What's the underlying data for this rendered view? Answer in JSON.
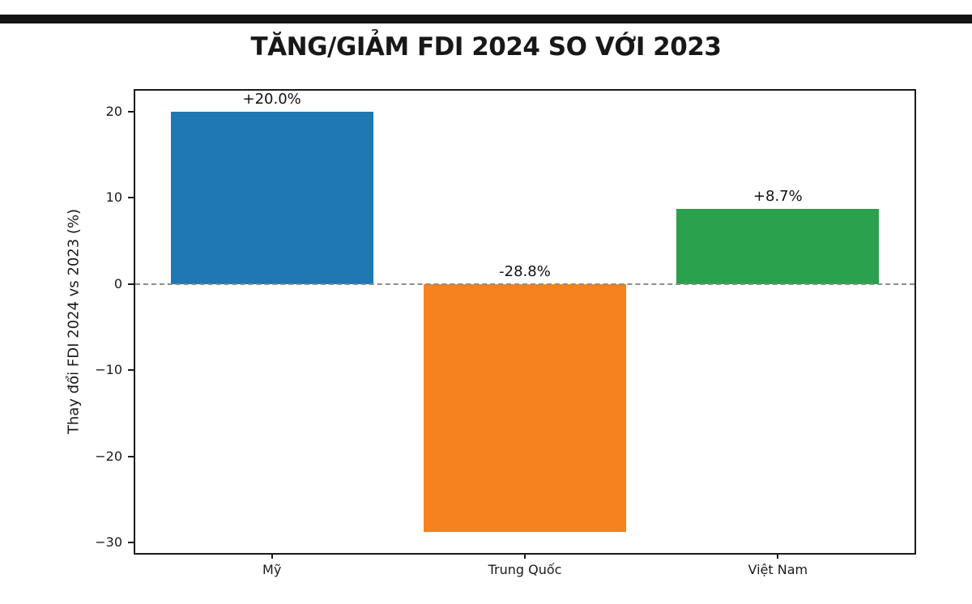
{
  "page": {
    "background": "#ffffff",
    "top_rule_color": "#141414"
  },
  "chart_data": {
    "type": "bar",
    "title": "TĂNG/GIẢM FDI 2024 SO VỚI 2023",
    "ylabel": "Thay đổi FDI 2024 vs 2023 (%)",
    "xlabel": "",
    "categories": [
      "Mỹ",
      "Trung Quốc",
      "Việt Nam"
    ],
    "values": [
      20.0,
      -28.8,
      8.7
    ],
    "value_labels": [
      "+20.0%",
      "-28.8%",
      "+8.7%"
    ],
    "bar_colors": [
      "#1f77b4",
      "#f5821e",
      "#2aa14c"
    ],
    "yticks": [
      20,
      10,
      0,
      -10,
      -20,
      -30
    ],
    "ytick_labels": [
      "20",
      "10",
      "0",
      "−10",
      "−20",
      "−30"
    ],
    "ylim": [
      -31.2,
      22.4
    ],
    "xlim": [
      -0.54,
      2.54
    ],
    "bar_width": 0.8,
    "zero_line": {
      "y": 0,
      "style": "dashed",
      "color": "#8c8c8c"
    },
    "grid": false,
    "legend": null,
    "axis_color": "#1a1a1a",
    "label_color": "#111111"
  }
}
